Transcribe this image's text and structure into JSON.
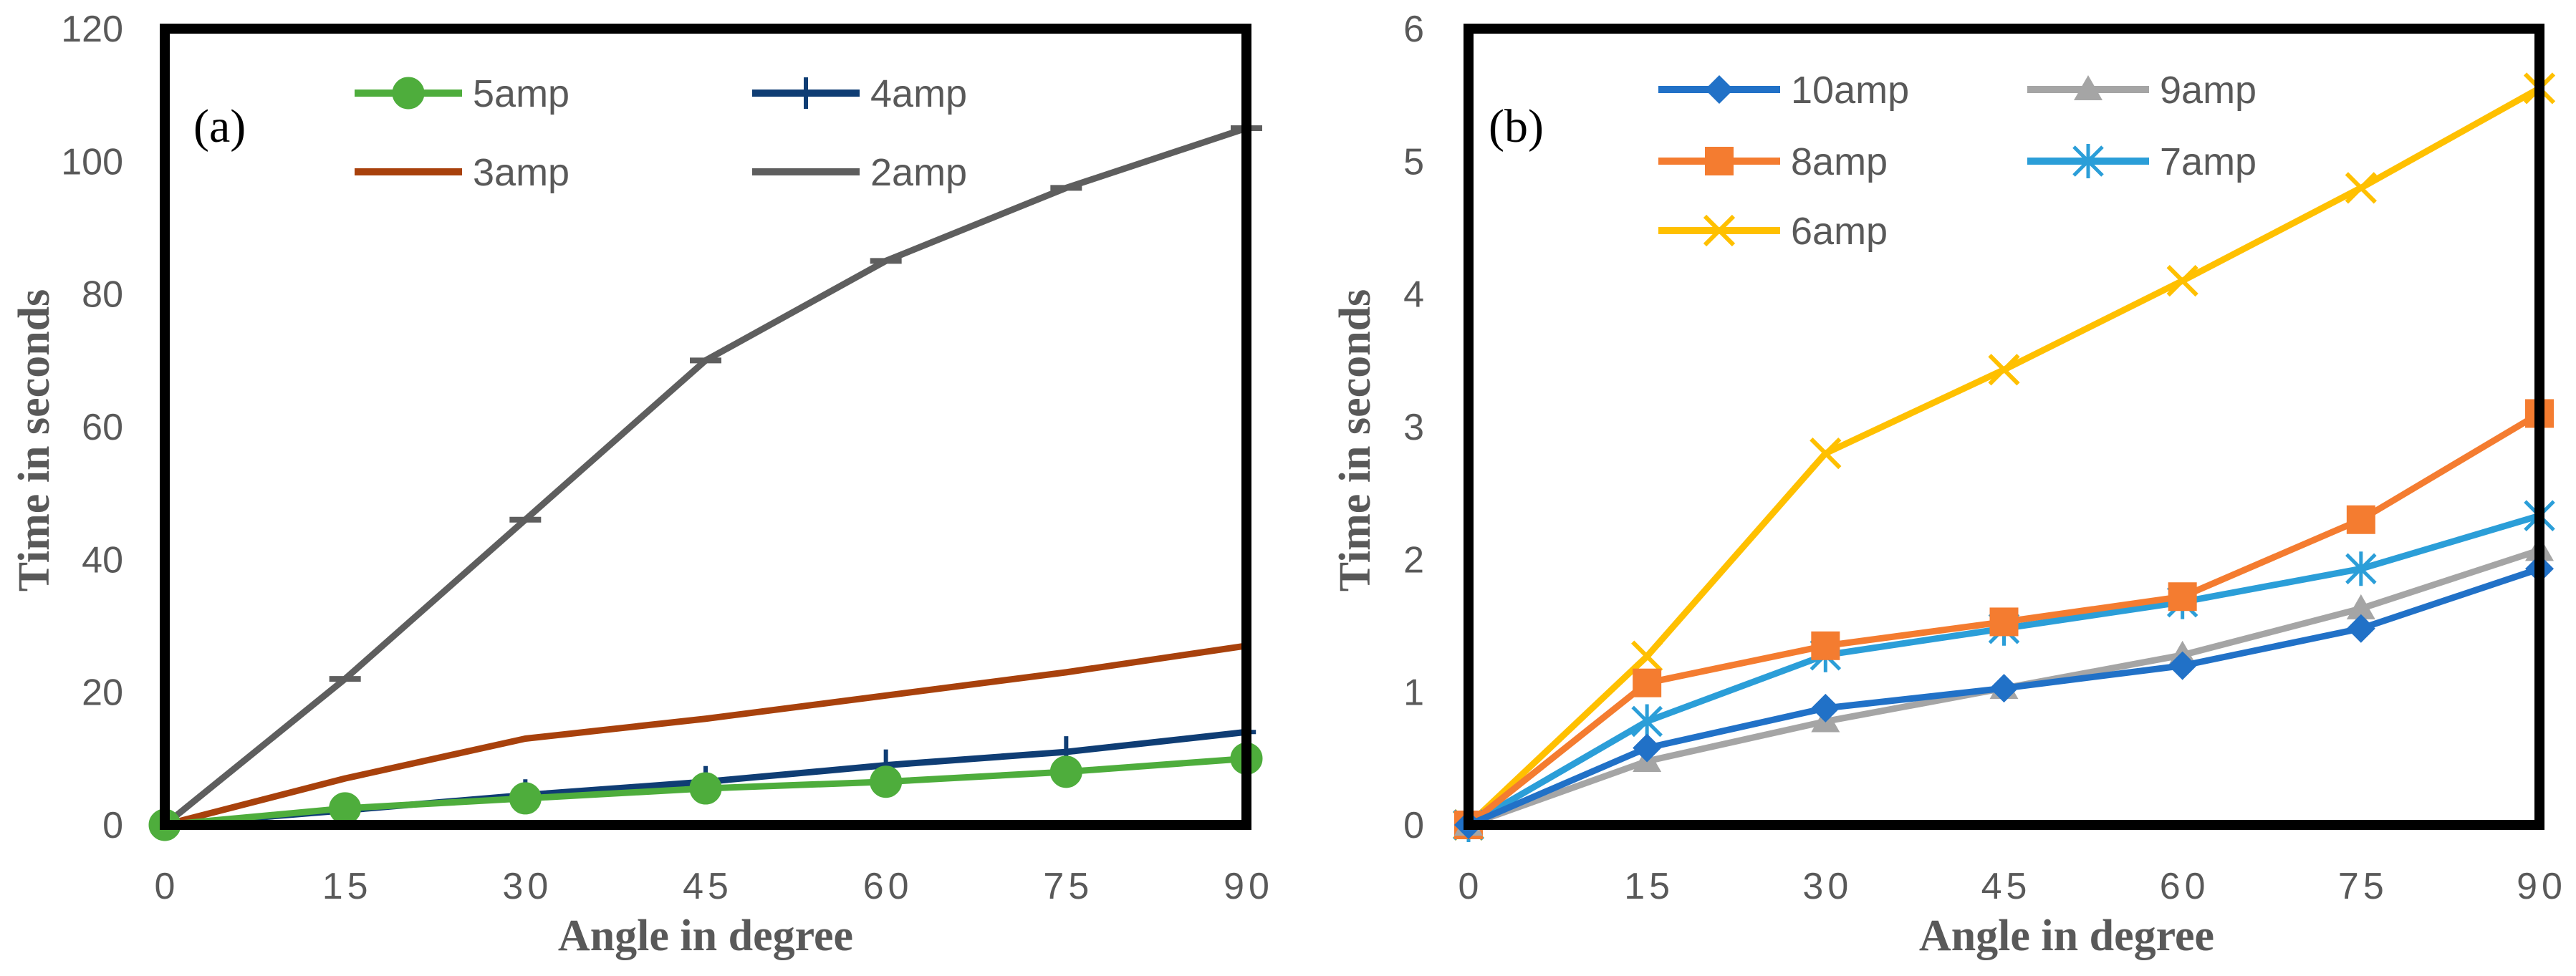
{
  "chart_data": [
    {
      "type": "line",
      "panel_label": "(a)",
      "xlabel": "Angle in degree",
      "ylabel": "Time in seconds",
      "x": [
        0,
        15,
        30,
        45,
        60,
        75,
        90
      ],
      "x_tick_labels": [
        "0",
        "15",
        "30",
        "45",
        "60",
        "75",
        "90"
      ],
      "xlim": [
        0,
        90
      ],
      "ylim": [
        0,
        120
      ],
      "y_tick_labels": [
        "0",
        "20",
        "40",
        "60",
        "80",
        "100",
        "120"
      ],
      "grid": false,
      "legend_position": "top-center",
      "series": [
        {
          "name": "5amp",
          "color": "#4EAD3C",
          "marker": "circle",
          "values": [
            0,
            2.5,
            4,
            5.5,
            6.5,
            8,
            10
          ]
        },
        {
          "name": "4amp",
          "color": "#0F3D74",
          "marker": "plus",
          "values": [
            0,
            2.2,
            4.5,
            6.5,
            9,
            11,
            14
          ]
        },
        {
          "name": "3amp",
          "color": "#A8410C",
          "marker": "none",
          "values": [
            0,
            7,
            13,
            16,
            19.5,
            23,
            27
          ]
        },
        {
          "name": "2amp",
          "color": "#5E5E5E",
          "marker": "dash",
          "values": [
            0,
            22,
            46,
            70,
            85,
            96,
            105
          ]
        }
      ]
    },
    {
      "type": "line",
      "panel_label": "(b)",
      "xlabel": "Angle in degree",
      "ylabel": "Time in seconds",
      "x": [
        0,
        15,
        30,
        45,
        60,
        75,
        90
      ],
      "x_tick_labels": [
        "0",
        "15",
        "30",
        "45",
        "60",
        "75",
        "90"
      ],
      "xlim": [
        0,
        90
      ],
      "ylim": [
        0,
        6
      ],
      "y_tick_labels": [
        "0",
        "1",
        "2",
        "3",
        "4",
        "5",
        "6"
      ],
      "grid": false,
      "legend_position": "top-left",
      "series": [
        {
          "name": "10amp",
          "color": "#2171C7",
          "marker": "diamond",
          "values": [
            0,
            0.58,
            0.88,
            1.03,
            1.2,
            1.48,
            1.93
          ]
        },
        {
          "name": "9amp",
          "color": "#A5A5A5",
          "marker": "triangle",
          "values": [
            0,
            0.48,
            0.78,
            1.03,
            1.28,
            1.63,
            2.07
          ]
        },
        {
          "name": "8amp",
          "color": "#F47C30",
          "marker": "square",
          "values": [
            0,
            1.07,
            1.35,
            1.53,
            1.72,
            2.3,
            3.1
          ]
        },
        {
          "name": "7amp",
          "color": "#2B9ED8",
          "marker": "asterisk",
          "values": [
            0,
            0.78,
            1.28,
            1.48,
            1.68,
            1.93,
            2.33
          ]
        },
        {
          "name": "6amp",
          "color": "#FFC000",
          "marker": "x",
          "values": [
            0,
            1.27,
            2.8,
            3.43,
            4.1,
            4.8,
            5.55
          ]
        }
      ]
    }
  ]
}
